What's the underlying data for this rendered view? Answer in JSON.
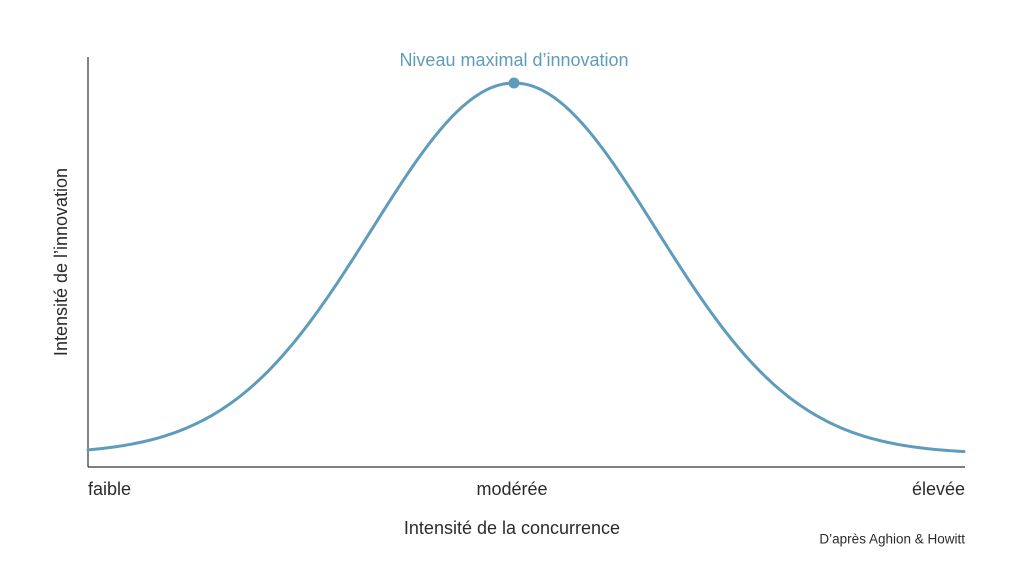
{
  "annotation": "Niveau maximal d’innovation",
  "y_axis_label": "Intensité de l’innovation",
  "x_axis_label": "Intensité de la concurrence",
  "x_tick_labels": [
    "faible",
    "modérée",
    "élevée"
  ],
  "source": "D’après Aghion & Howitt"
}
